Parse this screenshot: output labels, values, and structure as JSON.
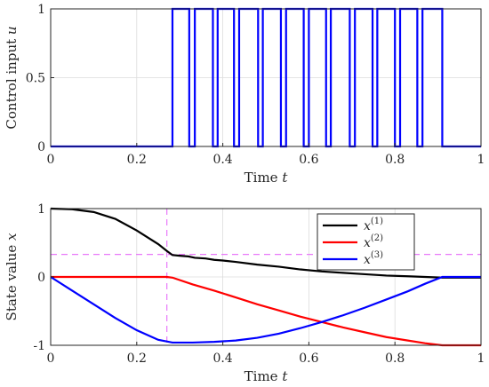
{
  "chart_data": [
    {
      "type": "line",
      "xlabel": "Time",
      "xlabel_var": "t",
      "ylabel": "Control input",
      "ylabel_var": "u",
      "xlim": [
        0,
        1
      ],
      "ylim": [
        0,
        1
      ],
      "xticks": [
        "0",
        "0.2",
        "0.4",
        "0.6",
        "0.8",
        "1"
      ],
      "yticks": [
        "0",
        "0.5",
        "1"
      ],
      "grid": true,
      "legend": "none",
      "series": [
        {
          "color": "#0000ff",
          "step": true,
          "x": [
            0,
            0.283,
            0.322,
            0.335,
            0.377,
            0.388,
            0.426,
            0.438,
            0.482,
            0.493,
            0.535,
            0.547,
            0.588,
            0.6,
            0.64,
            0.651,
            0.695,
            0.707,
            0.748,
            0.759,
            0.8,
            0.812,
            0.852,
            0.864,
            0.91,
            1
          ],
          "y": [
            0,
            1,
            0,
            1,
            0,
            1,
            0,
            1,
            0,
            1,
            0,
            1,
            0,
            1,
            0,
            1,
            0,
            1,
            0,
            1,
            0,
            1,
            0,
            1,
            0,
            0
          ]
        }
      ]
    },
    {
      "type": "line",
      "xlabel": "Time",
      "xlabel_var": "t",
      "ylabel": "State value",
      "ylabel_var": "x",
      "xlim": [
        0,
        1
      ],
      "ylim": [
        -1,
        1
      ],
      "xticks": [
        "0",
        "0.2",
        "0.4",
        "0.6",
        "0.8",
        "1"
      ],
      "yticks": [
        "-1",
        "0",
        "1"
      ],
      "grid": true,
      "legend": "top-right",
      "reference_lines": {
        "x": 0.27,
        "y": 0.33,
        "color": "#e879f9"
      },
      "series": [
        {
          "name": "x(1)",
          "name_base": "x",
          "name_sup": "(1)",
          "color": "#000000",
          "x": [
            0,
            0.05,
            0.1,
            0.15,
            0.2,
            0.25,
            0.27,
            0.283,
            0.3,
            0.32,
            0.335,
            0.36,
            0.38,
            0.4,
            0.43,
            0.48,
            0.53,
            0.58,
            0.63,
            0.68,
            0.73,
            0.78,
            0.83,
            0.87,
            0.91,
            0.95,
            1.0
          ],
          "y": [
            1.0,
            0.99,
            0.95,
            0.85,
            0.68,
            0.48,
            0.38,
            0.32,
            0.31,
            0.3,
            0.28,
            0.27,
            0.25,
            0.24,
            0.22,
            0.18,
            0.15,
            0.11,
            0.08,
            0.06,
            0.04,
            0.02,
            0.01,
            0.0,
            -0.01,
            -0.01,
            -0.01
          ]
        },
        {
          "name": "x(2)",
          "name_base": "x",
          "name_sup": "(2)",
          "color": "#ff0000",
          "x": [
            0,
            0.1,
            0.2,
            0.27,
            0.283,
            0.33,
            0.38,
            0.43,
            0.48,
            0.53,
            0.58,
            0.63,
            0.68,
            0.73,
            0.78,
            0.83,
            0.87,
            0.91,
            0.95,
            1.0
          ],
          "y": [
            0,
            0,
            0,
            0,
            -0.01,
            -0.11,
            -0.2,
            -0.3,
            -0.4,
            -0.49,
            -0.58,
            -0.66,
            -0.74,
            -0.81,
            -0.88,
            -0.93,
            -0.97,
            -1.0,
            -1.0,
            -1.0
          ]
        },
        {
          "name": "x(3)",
          "name_base": "x",
          "name_sup": "(3)",
          "color": "#0000ff",
          "x": [
            0,
            0.05,
            0.1,
            0.15,
            0.2,
            0.25,
            0.283,
            0.33,
            0.38,
            0.43,
            0.48,
            0.53,
            0.58,
            0.63,
            0.68,
            0.73,
            0.78,
            0.83,
            0.87,
            0.91,
            0.95,
            1.0
          ],
          "y": [
            0,
            -0.2,
            -0.4,
            -0.6,
            -0.78,
            -0.92,
            -0.96,
            -0.96,
            -0.95,
            -0.93,
            -0.89,
            -0.83,
            -0.75,
            -0.66,
            -0.56,
            -0.45,
            -0.33,
            -0.21,
            -0.1,
            0.0,
            0.0,
            0.0
          ]
        }
      ]
    }
  ]
}
